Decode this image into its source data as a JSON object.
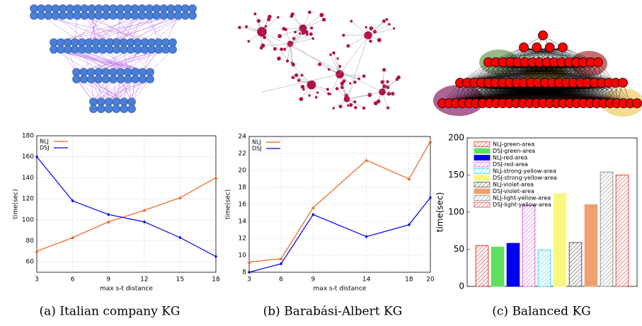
{
  "chart_data": [
    {
      "type": "line",
      "caption": "(a) Italian company KG",
      "xlabel": "max s-t distance",
      "ylabel": "time(sec)",
      "x": [
        3,
        6,
        9,
        12,
        15,
        18
      ],
      "xlim": [
        3,
        18
      ],
      "xticks": [
        3,
        6,
        9,
        12,
        15,
        18
      ],
      "ylim": [
        50,
        180
      ],
      "yticks": [
        60,
        80,
        100,
        120,
        140,
        160,
        180
      ],
      "grid": true,
      "legend": "top-left",
      "series": [
        {
          "name": "NLJ",
          "color": "#f06020",
          "marker": "triangle",
          "values": [
            70,
            83,
            98,
            109,
            121,
            140
          ]
        },
        {
          "name": "DSJ",
          "color": "#0000ee",
          "marker": "diamond",
          "values": [
            160,
            118,
            105,
            98,
            83,
            65
          ]
        }
      ]
    },
    {
      "type": "line",
      "caption": "(b) Barabási-Albert KG",
      "xlabel": "max s-t distance",
      "ylabel": "time(sec)",
      "x": [
        3,
        6,
        9,
        14,
        18,
        20
      ],
      "xlim": [
        3,
        20
      ],
      "xticks": [
        3,
        6,
        9,
        14,
        18,
        20
      ],
      "ylim": [
        8,
        24
      ],
      "yticks": [
        8,
        10,
        12,
        14,
        16,
        18,
        20,
        22,
        24
      ],
      "grid": true,
      "legend": "top-left",
      "series": [
        {
          "name": "NLJ",
          "color": "#f06020",
          "marker": "triangle",
          "values": [
            9.2,
            9.6,
            15.6,
            21.2,
            19,
            23.4
          ]
        },
        {
          "name": "DSJ",
          "color": "#0000ee",
          "marker": "diamond",
          "values": [
            8,
            9,
            14.8,
            12.2,
            13.6,
            16.8
          ]
        }
      ]
    },
    {
      "type": "bar",
      "caption": "(c) Balanced KG",
      "ylabel": "time(sec)",
      "ylim": [
        0,
        200
      ],
      "yticks": [
        0,
        50,
        100,
        150,
        200
      ],
      "grid": false,
      "legend": "top-left",
      "series": [
        {
          "name": "NLJ-green-area",
          "color": "#e03030",
          "hatch": true,
          "values": [
            55
          ]
        },
        {
          "name": "DSJ-green-area",
          "color": "#60e060",
          "hatch": false,
          "values": [
            53
          ]
        },
        {
          "name": "NLJ-red-area",
          "color": "#0000ee",
          "hatch": false,
          "values": [
            58
          ]
        },
        {
          "name": "DSJ-red-area",
          "color": "#e060e0",
          "hatch": true,
          "values": [
            109
          ]
        },
        {
          "name": "NLJ-strong-yellow-area",
          "color": "#40d8e8",
          "hatch": true,
          "values": [
            49
          ]
        },
        {
          "name": "DSJ-strong-yellow-area",
          "color": "#f8f880",
          "hatch": false,
          "values": [
            125
          ]
        },
        {
          "name": "NLJ-violet-area",
          "color": "#505050",
          "hatch": true,
          "values": [
            59
          ]
        },
        {
          "name": "DSJ-violet-area",
          "color": "#f0a070",
          "hatch": false,
          "values": [
            110
          ]
        },
        {
          "name": "NLJ-light-yellow-area",
          "color": "#909090",
          "hatch": true,
          "values": [
            154
          ]
        },
        {
          "name": "DSJ-light-yellow-area",
          "color": "#f04040",
          "hatch": true,
          "values": [
            150
          ]
        }
      ]
    }
  ]
}
